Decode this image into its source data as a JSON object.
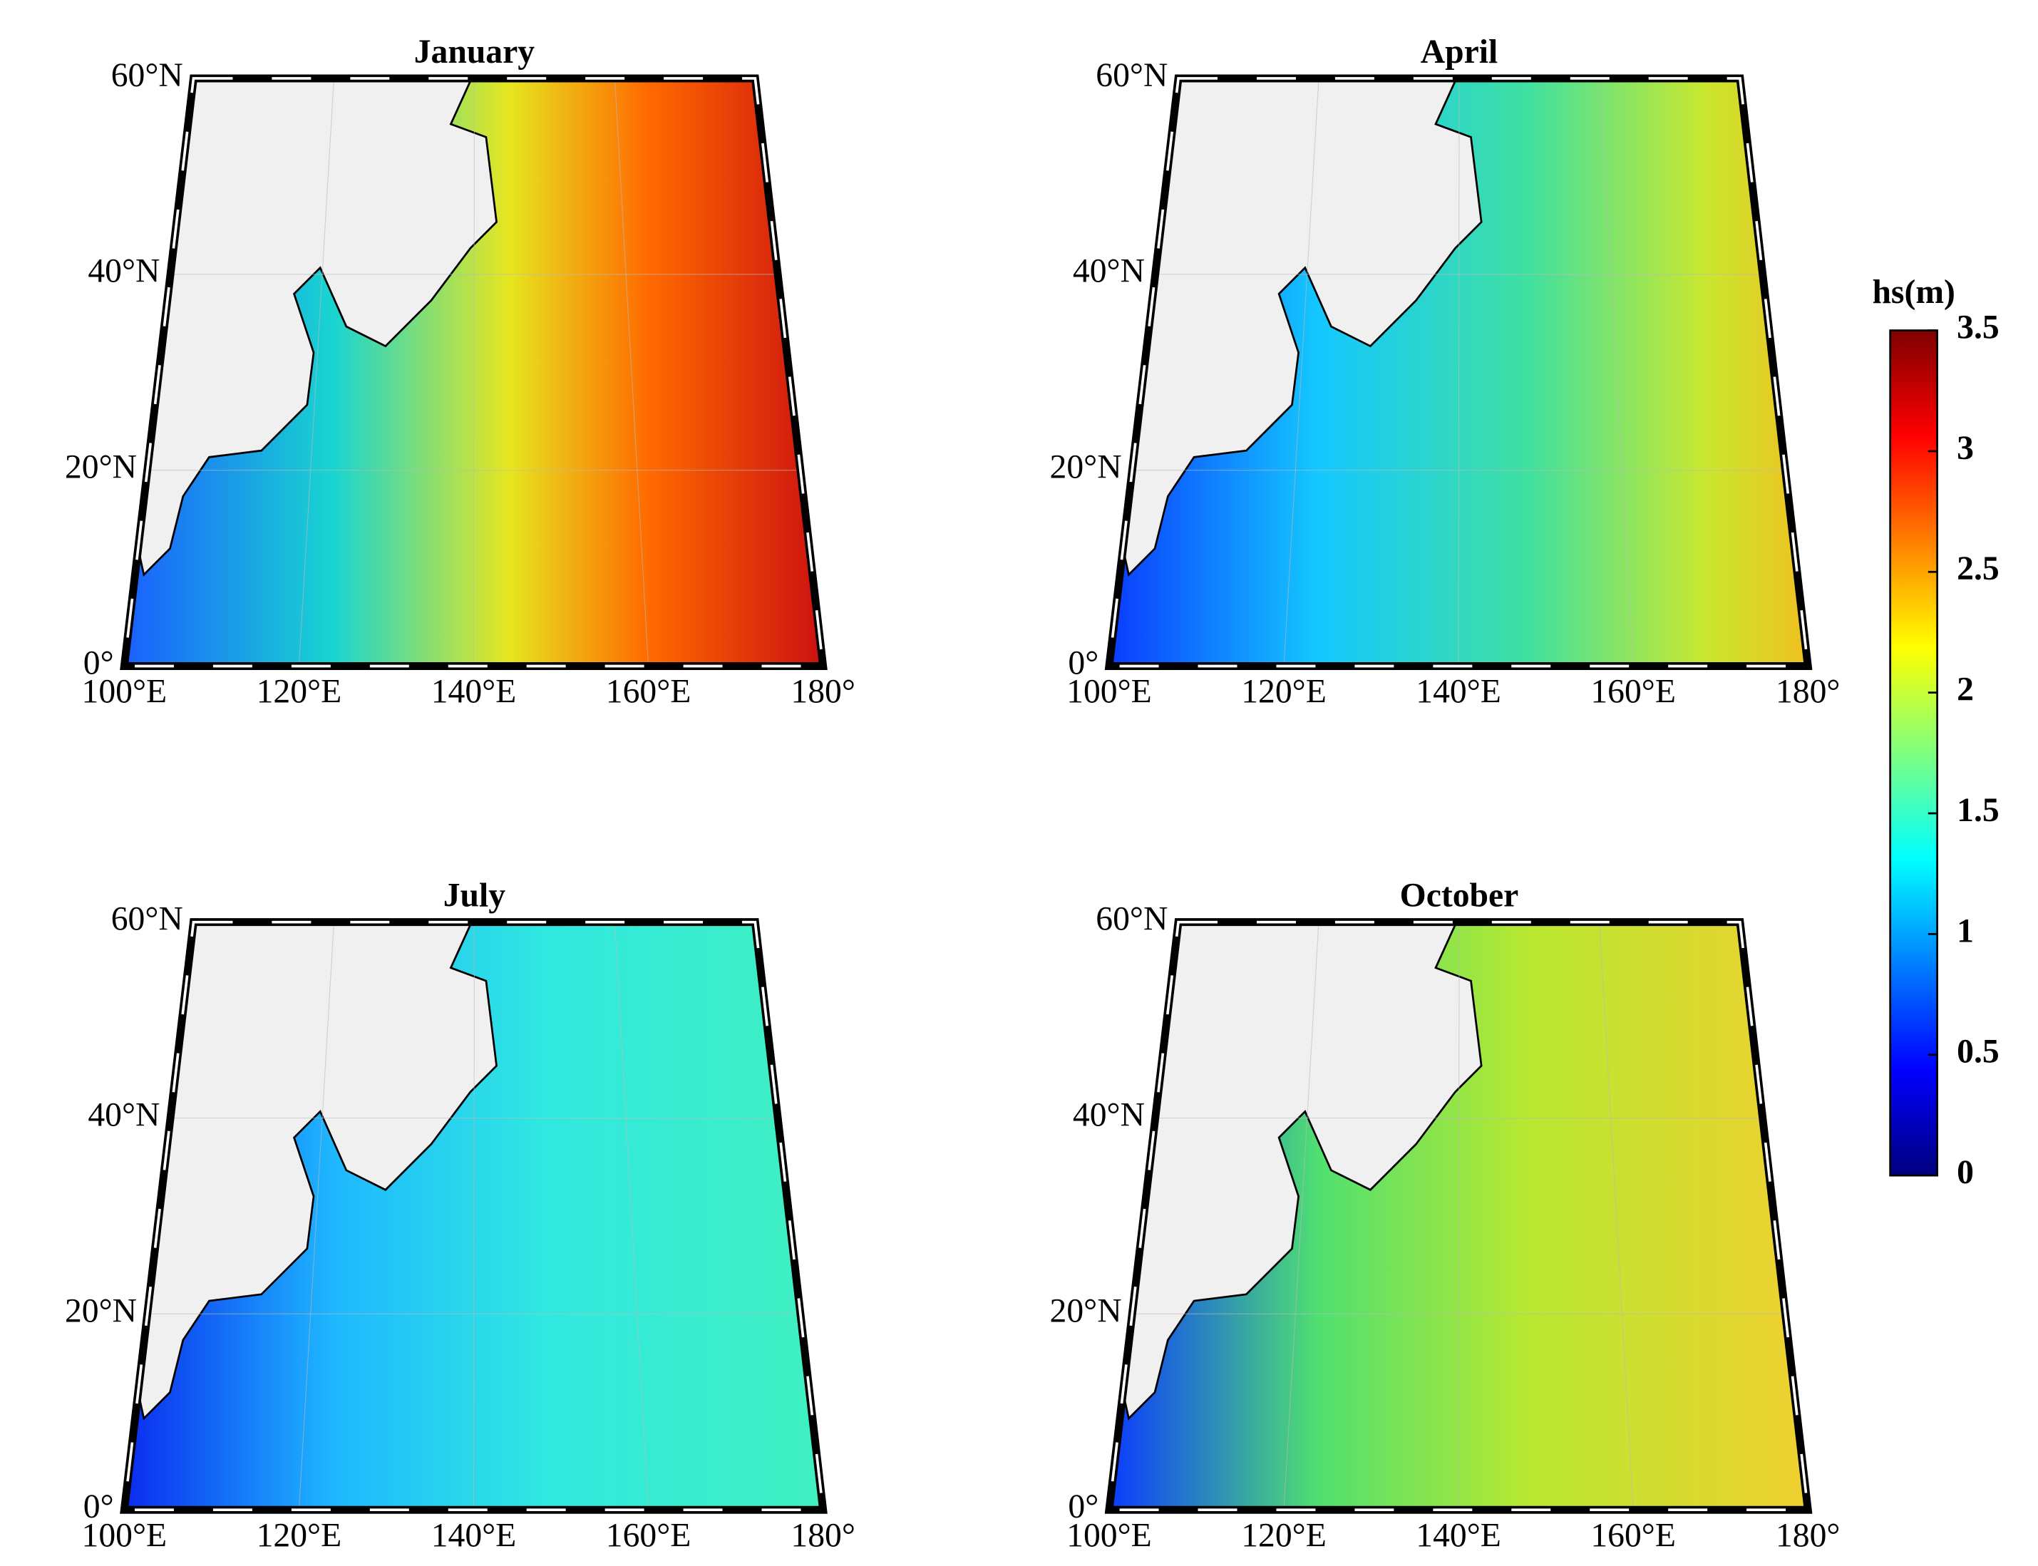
{
  "lat_lim": [
    0,
    60
  ],
  "lon_lim": [
    100,
    180
  ],
  "panels": [
    {
      "title": "January",
      "lat_ticks": [
        {
          "value": 0,
          "label": "0°"
        },
        {
          "value": 20,
          "label": "20°N"
        },
        {
          "value": 40,
          "label": "40°N"
        },
        {
          "value": 60,
          "label": "60°N"
        }
      ],
      "lon_ticks": [
        {
          "value": 100,
          "label": "100°E"
        },
        {
          "value": 120,
          "label": "120°E"
        },
        {
          "value": 140,
          "label": "140°E"
        },
        {
          "value": 160,
          "label": "160°E"
        },
        {
          "value": 180,
          "label": "180°"
        }
      ]
    },
    {
      "title": "April",
      "lat_ticks": [
        {
          "value": 0,
          "label": "0°"
        },
        {
          "value": 20,
          "label": "20°N"
        },
        {
          "value": 40,
          "label": "40°N"
        },
        {
          "value": 60,
          "label": "60°N"
        }
      ],
      "lon_ticks": [
        {
          "value": 100,
          "label": "100°E"
        },
        {
          "value": 120,
          "label": "120°E"
        },
        {
          "value": 140,
          "label": "140°E"
        },
        {
          "value": 160,
          "label": "160°E"
        },
        {
          "value": 180,
          "label": "180°"
        }
      ]
    },
    {
      "title": "July",
      "lat_ticks": [
        {
          "value": 0,
          "label": "0°"
        },
        {
          "value": 20,
          "label": "20°N"
        },
        {
          "value": 40,
          "label": "40°N"
        },
        {
          "value": 60,
          "label": "60°N"
        }
      ],
      "lon_ticks": [
        {
          "value": 100,
          "label": "100°E"
        },
        {
          "value": 120,
          "label": "120°E"
        },
        {
          "value": 140,
          "label": "140°E"
        },
        {
          "value": 160,
          "label": "160°E"
        },
        {
          "value": 180,
          "label": "180°"
        }
      ]
    },
    {
      "title": "October",
      "lat_ticks": [
        {
          "value": 0,
          "label": "0°"
        },
        {
          "value": 20,
          "label": "20°N"
        },
        {
          "value": 40,
          "label": "40°N"
        },
        {
          "value": 60,
          "label": "60°N"
        }
      ],
      "lon_ticks": [
        {
          "value": 100,
          "label": "100°E"
        },
        {
          "value": 120,
          "label": "120°E"
        },
        {
          "value": 140,
          "label": "140°E"
        },
        {
          "value": 160,
          "label": "160°E"
        },
        {
          "value": 180,
          "label": "180°"
        }
      ]
    }
  ],
  "colorbar": {
    "label": "hs(m)",
    "lim": [
      0,
      3.5
    ],
    "ticks": [
      0,
      0.5,
      1,
      1.5,
      2,
      2.5,
      3,
      3.5
    ]
  }
}
